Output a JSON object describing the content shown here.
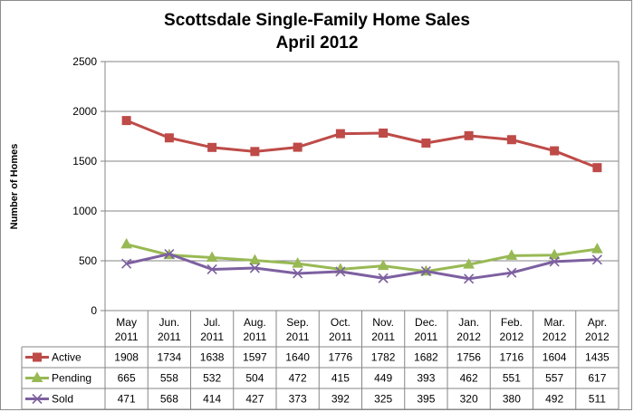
{
  "chart_data": {
    "type": "line",
    "title": "Scottsdale Single-Family Home Sales",
    "subtitle": "April 2012",
    "ylabel": "Number of Homes",
    "ylim": [
      0,
      2500
    ],
    "yticks": [
      0,
      500,
      1000,
      1500,
      2000,
      2500
    ],
    "grid": true,
    "legend": "data-table-left",
    "categories": [
      [
        "May",
        "2011"
      ],
      [
        "Jun.",
        "2011"
      ],
      [
        "Jul.",
        "2011"
      ],
      [
        "Aug.",
        "2011"
      ],
      [
        "Sep.",
        "2011"
      ],
      [
        "Oct.",
        "2011"
      ],
      [
        "Nov.",
        "2011"
      ],
      [
        "Dec.",
        "2011"
      ],
      [
        "Jan.",
        "2012"
      ],
      [
        "Feb.",
        "2012"
      ],
      [
        "Mar.",
        "2012"
      ],
      [
        "Apr.",
        "2012"
      ]
    ],
    "series": [
      {
        "name": "Active",
        "marker": "square",
        "color": "#be4b48",
        "values": [
          1908,
          1734,
          1638,
          1597,
          1640,
          1776,
          1782,
          1682,
          1756,
          1716,
          1604,
          1435
        ]
      },
      {
        "name": "Pending",
        "marker": "triangle",
        "color": "#98b954",
        "values": [
          665,
          558,
          532,
          504,
          472,
          415,
          449,
          393,
          462,
          551,
          557,
          617
        ]
      },
      {
        "name": "Sold",
        "marker": "x",
        "color": "#7d60a0",
        "values": [
          471,
          568,
          414,
          427,
          373,
          392,
          325,
          395,
          320,
          380,
          492,
          511
        ]
      }
    ]
  }
}
